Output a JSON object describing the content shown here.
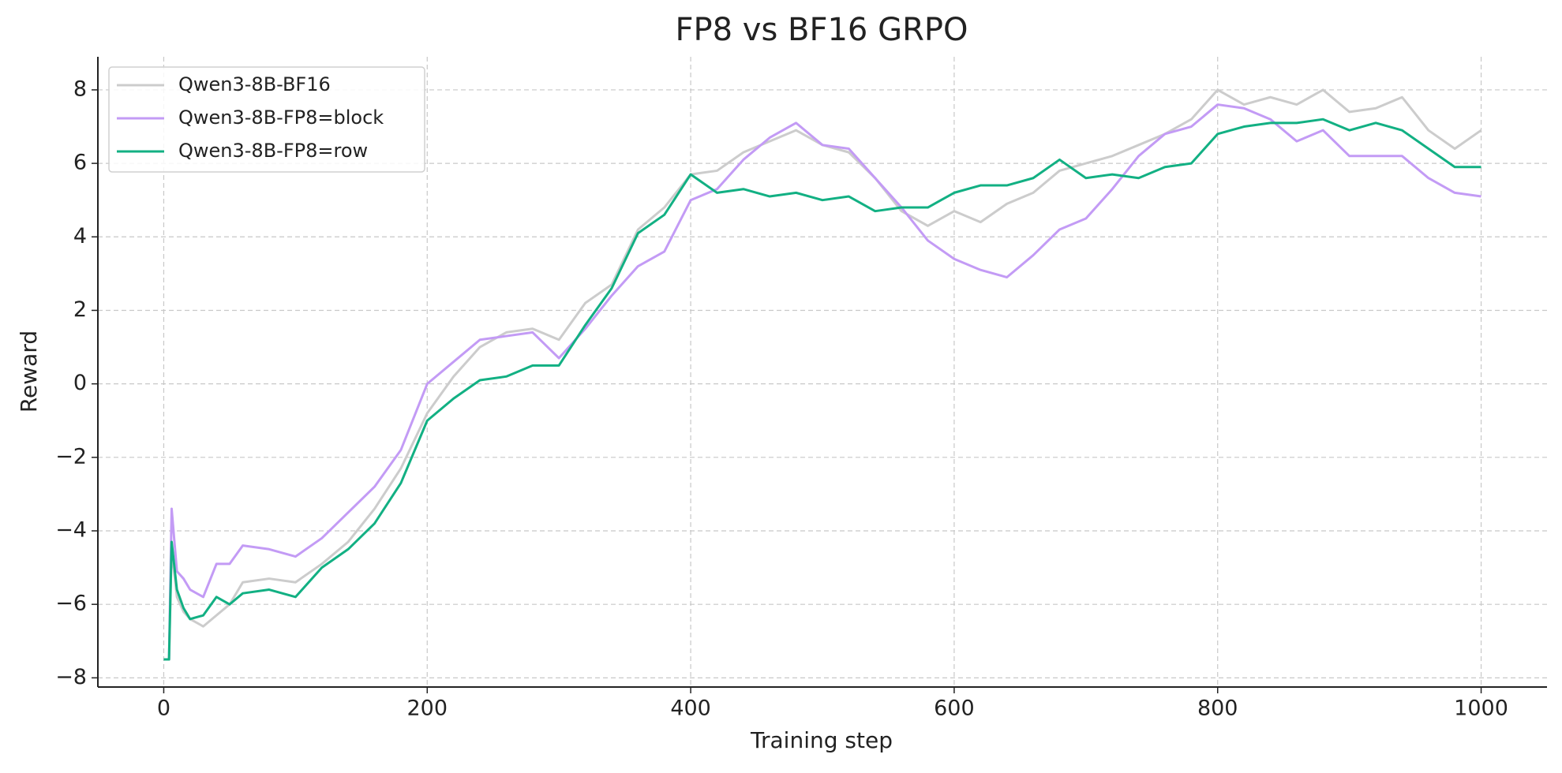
{
  "chart_data": {
    "type": "line",
    "title": "FP8 vs BF16 GRPO",
    "x_label": "Training step",
    "y_label": "Reward",
    "x": [
      0,
      4,
      6,
      10,
      15,
      20,
      30,
      40,
      50,
      60,
      80,
      100,
      120,
      140,
      160,
      180,
      200,
      220,
      240,
      260,
      280,
      300,
      320,
      340,
      360,
      380,
      400,
      420,
      440,
      460,
      480,
      500,
      520,
      540,
      560,
      580,
      600,
      620,
      640,
      660,
      680,
      700,
      720,
      740,
      760,
      780,
      800,
      820,
      840,
      860,
      880,
      900,
      920,
      940,
      960,
      980,
      1000
    ],
    "series": [
      {
        "name": "Qwen3-8B-BF16",
        "color": "#cccccc",
        "values": [
          -7.5,
          -7.5,
          -4.5,
          -5.8,
          -6.2,
          -6.4,
          -6.6,
          -6.3,
          -6.0,
          -5.4,
          -5.3,
          -5.4,
          -4.9,
          -4.3,
          -3.4,
          -2.3,
          -0.8,
          0.2,
          1.0,
          1.4,
          1.5,
          1.2,
          2.2,
          2.7,
          4.2,
          4.8,
          5.7,
          5.8,
          6.3,
          6.6,
          6.9,
          6.5,
          6.3,
          5.6,
          4.7,
          4.3,
          4.7,
          4.4,
          4.9,
          5.2,
          5.8,
          6.0,
          6.2,
          6.5,
          6.8,
          7.2,
          8.0,
          7.6,
          7.8,
          7.6,
          8.0,
          7.4,
          7.5,
          7.8,
          6.9,
          6.4,
          6.9
        ]
      },
      {
        "name": "Qwen3-8B-FP8=block",
        "color": "#c39bf5",
        "values": [
          -7.5,
          -7.5,
          -3.4,
          -5.1,
          -5.3,
          -5.6,
          -5.8,
          -4.9,
          -4.9,
          -4.4,
          -4.5,
          -4.7,
          -4.2,
          -3.5,
          -2.8,
          -1.8,
          0.0,
          0.6,
          1.2,
          1.3,
          1.4,
          0.7,
          1.5,
          2.4,
          3.2,
          3.6,
          5.0,
          5.3,
          6.1,
          6.7,
          7.1,
          6.5,
          6.4,
          5.6,
          4.8,
          3.9,
          3.4,
          3.1,
          2.9,
          3.5,
          4.2,
          4.5,
          5.3,
          6.2,
          6.8,
          7.0,
          7.6,
          7.5,
          7.2,
          6.6,
          6.9,
          6.2,
          6.2,
          6.2,
          5.6,
          5.2,
          5.1
        ]
      },
      {
        "name": "Qwen3-8B-FP8=row",
        "color": "#12b083",
        "values": [
          -7.5,
          -7.5,
          -4.3,
          -5.6,
          -6.1,
          -6.4,
          -6.3,
          -5.8,
          -6.0,
          -5.7,
          -5.6,
          -5.8,
          -5.0,
          -4.5,
          -3.8,
          -2.7,
          -1.0,
          -0.4,
          0.1,
          0.2,
          0.5,
          0.5,
          1.6,
          2.6,
          4.1,
          4.6,
          5.7,
          5.2,
          5.3,
          5.1,
          5.2,
          5.0,
          5.1,
          4.7,
          4.8,
          4.8,
          5.2,
          5.4,
          5.4,
          5.6,
          6.1,
          5.6,
          5.7,
          5.6,
          5.9,
          6.0,
          6.8,
          7.0,
          7.1,
          7.1,
          7.2,
          6.9,
          7.1,
          6.9,
          6.4,
          5.9,
          5.9
        ]
      }
    ],
    "xlim": [
      -50,
      1050
    ],
    "ylim": [
      -8.25,
      8.9
    ],
    "xticks": [
      0,
      200,
      400,
      600,
      800,
      1000
    ],
    "yticks": [
      {
        "value": -8,
        "label": "−8"
      },
      {
        "value": -6,
        "label": "−6"
      },
      {
        "value": -4,
        "label": "−4"
      },
      {
        "value": -2,
        "label": "−2"
      },
      0,
      2,
      4,
      6,
      8
    ],
    "grid": true,
    "legend": "upper-left"
  }
}
